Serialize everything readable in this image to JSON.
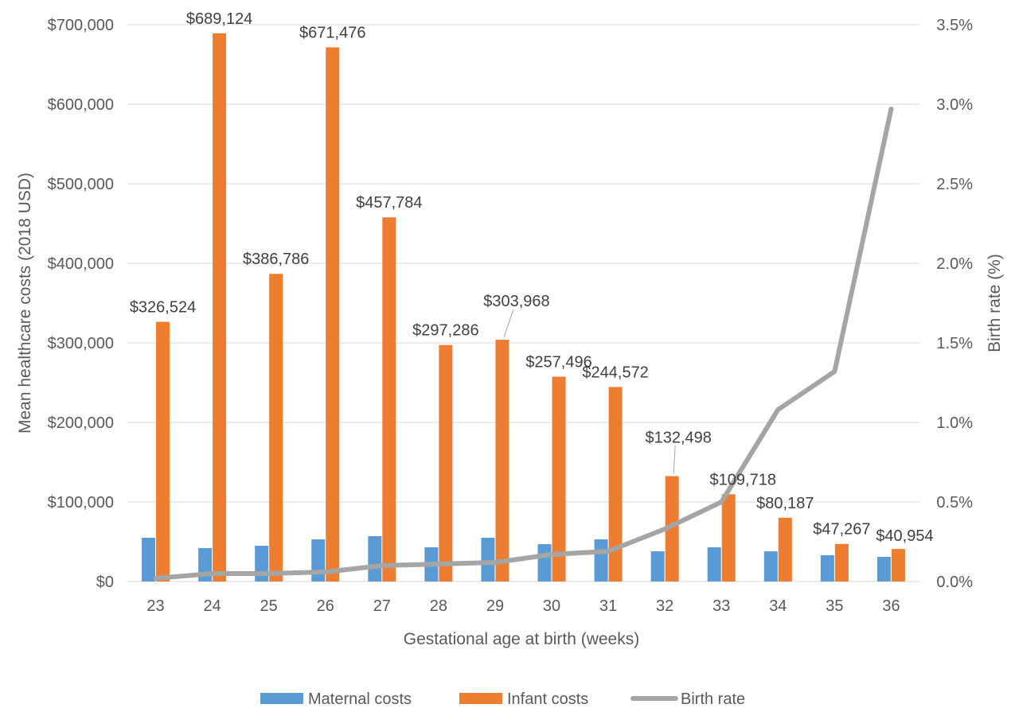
{
  "chart_data": {
    "type": "bar",
    "xlabel": "Gestational age at birth (weeks)",
    "ylabel": "Mean healthcare costs (2018 USD)",
    "y2label": "Birth rate (%)",
    "categories": [
      "23",
      "24",
      "25",
      "26",
      "27",
      "28",
      "29",
      "30",
      "31",
      "32",
      "33",
      "34",
      "35",
      "36"
    ],
    "ylim": [
      0,
      700000
    ],
    "y_ticks": [
      0,
      100000,
      200000,
      300000,
      400000,
      500000,
      600000,
      700000
    ],
    "y_tick_labels": [
      "$0",
      "$100,000",
      "$200,000",
      "$300,000",
      "$400,000",
      "$500,000",
      "$600,000",
      "$700,000"
    ],
    "y2lim": [
      0,
      3.5
    ],
    "y2_ticks": [
      0,
      0.5,
      1.0,
      1.5,
      2.0,
      2.5,
      3.0,
      3.5
    ],
    "y2_tick_labels": [
      "0.0%",
      "0.5%",
      "1.0%",
      "1.5%",
      "2.0%",
      "2.5%",
      "3.0%",
      "3.5%"
    ],
    "grid": true,
    "legend_position": "bottom",
    "series": [
      {
        "name": "Maternal costs",
        "type": "bar",
        "color": "#5B9BD5",
        "values": [
          55000,
          42000,
          45000,
          53000,
          57000,
          43000,
          55000,
          47000,
          53000,
          38000,
          43000,
          38000,
          33000,
          31000
        ]
      },
      {
        "name": "Infant costs",
        "type": "bar",
        "color": "#ED7D31",
        "values": [
          326524,
          689124,
          386786,
          671476,
          457784,
          297286,
          303968,
          257496,
          244572,
          132498,
          109718,
          80187,
          47267,
          40954
        ],
        "data_labels": [
          "$326,524",
          "$689,124",
          "$386,786",
          "$671,476",
          "$457,784",
          "$297,286",
          "$303,968",
          "$257,496",
          "$244,572",
          "$132,498",
          "$109,718",
          "$80,187",
          "$47,267",
          "$40,954"
        ]
      },
      {
        "name": "Birth rate",
        "type": "line",
        "axis": "right",
        "color": "#A5A5A5",
        "values": [
          0.02,
          0.05,
          0.05,
          0.06,
          0.1,
          0.11,
          0.12,
          0.17,
          0.19,
          0.33,
          0.5,
          1.08,
          1.32,
          2.97
        ]
      }
    ]
  }
}
